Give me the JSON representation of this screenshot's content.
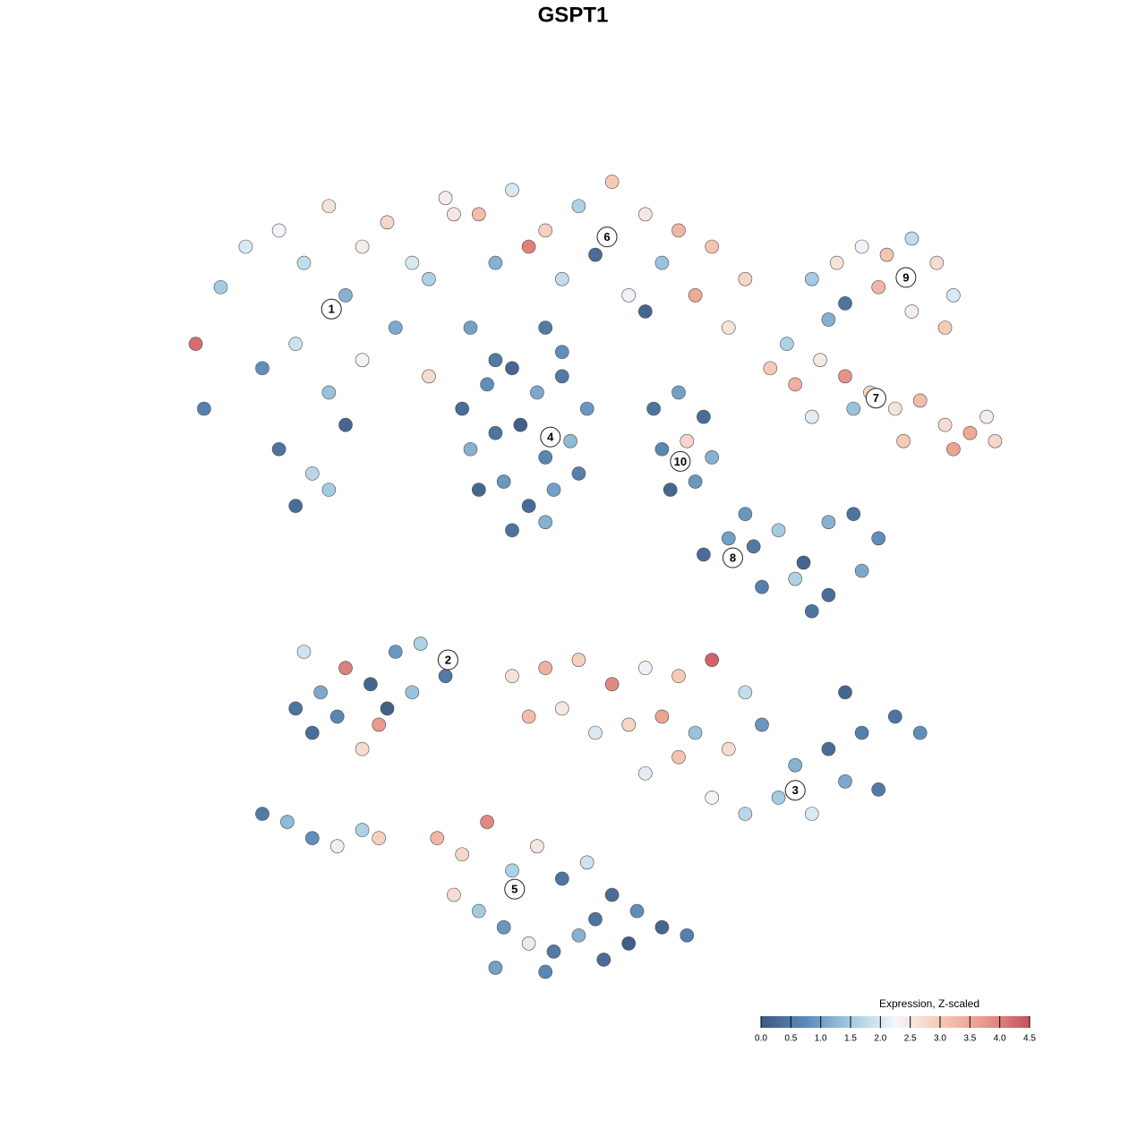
{
  "chart_data": {
    "type": "scatter",
    "title": "GSPT1",
    "xlim": [
      0,
      100
    ],
    "ylim": [
      0,
      100
    ],
    "x": [
      5,
      8,
      12,
      15,
      18,
      20,
      22,
      25,
      28,
      30,
      33,
      35,
      10,
      14,
      18,
      22,
      26,
      30,
      12,
      16,
      20,
      14,
      18,
      2,
      3,
      32,
      36,
      40,
      44,
      48,
      52,
      56,
      60,
      64,
      68,
      38,
      42,
      46,
      50,
      54,
      58,
      62,
      66,
      44,
      56,
      34,
      37,
      40,
      43,
      46,
      49,
      35,
      38,
      41,
      44,
      47,
      36,
      39,
      42,
      45,
      48,
      40,
      44,
      38,
      46,
      57,
      60,
      63,
      58,
      61,
      64,
      59,
      62,
      76,
      79,
      82,
      85,
      88,
      91,
      93,
      80,
      84,
      88,
      92,
      78,
      71,
      74,
      77,
      80,
      83,
      86,
      89,
      92,
      95,
      98,
      76,
      81,
      87,
      93,
      97,
      73,
      63,
      66,
      69,
      72,
      75,
      78,
      81,
      84,
      70,
      74,
      78,
      82,
      68,
      76,
      14,
      17,
      20,
      23,
      26,
      29,
      32,
      16,
      19,
      22,
      25,
      28,
      15,
      24,
      10,
      13,
      16,
      19,
      22,
      24,
      40,
      44,
      48,
      52,
      56,
      60,
      64,
      68,
      42,
      46,
      50,
      54,
      58,
      62,
      66,
      70,
      74,
      78,
      82,
      86,
      89,
      72,
      76,
      80,
      84,
      64,
      68,
      60,
      56,
      80,
      31,
      34,
      37,
      40,
      43,
      46,
      49,
      52,
      55,
      58,
      61,
      33,
      36,
      39,
      42,
      45,
      48,
      51,
      54,
      38,
      44,
      50
    ],
    "y": [
      85,
      90,
      92,
      88,
      95,
      84,
      90,
      93,
      88,
      86,
      94,
      80,
      75,
      78,
      72,
      76,
      80,
      74,
      65,
      62,
      68,
      58,
      60,
      78,
      70,
      96,
      94,
      97,
      92,
      95,
      98,
      94,
      92,
      90,
      86,
      88,
      90,
      86,
      89,
      84,
      88,
      84,
      80,
      80,
      82,
      70,
      73,
      75,
      72,
      74,
      70,
      65,
      67,
      68,
      64,
      66,
      60,
      61,
      58,
      60,
      62,
      55,
      56,
      76,
      77,
      70,
      72,
      69,
      65,
      66,
      64,
      60,
      61,
      86,
      88,
      90,
      89,
      91,
      88,
      84,
      83,
      85,
      82,
      80,
      81,
      75,
      73,
      76,
      74,
      72,
      70,
      71,
      68,
      67,
      66,
      69,
      70,
      66,
      65,
      69,
      78,
      52,
      54,
      53,
      55,
      51,
      56,
      57,
      54,
      48,
      49,
      47,
      50,
      57,
      45,
      33,
      35,
      38,
      36,
      40,
      41,
      37,
      30,
      32,
      28,
      33,
      35,
      40,
      31,
      20,
      19,
      17,
      16,
      18,
      17,
      37,
      38,
      39,
      36,
      38,
      37,
      39,
      35,
      32,
      33,
      30,
      31,
      32,
      30,
      28,
      31,
      26,
      28,
      30,
      32,
      30,
      22,
      20,
      24,
      23,
      22,
      20,
      27,
      25,
      35,
      17,
      15,
      19,
      13,
      16,
      12,
      14,
      10,
      8,
      6,
      5,
      10,
      8,
      6,
      4,
      3,
      5,
      2,
      4,
      1,
      0.5,
      7
    ],
    "values": [
      1.5,
      2.0,
      2.2,
      1.8,
      2.6,
      1.2,
      2.4,
      2.8,
      2.0,
      1.6,
      2.5,
      1.0,
      0.8,
      1.9,
      1.4,
      2.3,
      1.1,
      2.7,
      0.4,
      1.7,
      0.2,
      0.3,
      1.5,
      4.2,
      0.6,
      2.4,
      3.2,
      2.0,
      2.9,
      1.6,
      3.0,
      2.5,
      3.3,
      3.1,
      2.8,
      1.2,
      4.0,
      1.8,
      0.3,
      2.2,
      1.4,
      3.5,
      2.6,
      0.5,
      0.2,
      0.3,
      0.8,
      0.2,
      1.1,
      0.5,
      0.9,
      1.2,
      0.4,
      0.1,
      0.7,
      1.3,
      0.2,
      0.9,
      0.3,
      1.0,
      0.6,
      0.4,
      1.2,
      0.5,
      0.8,
      0.4,
      1.0,
      0.3,
      0.7,
      2.8,
      1.2,
      0.2,
      0.9,
      1.5,
      2.6,
      2.2,
      3.1,
      1.8,
      2.7,
      2.0,
      0.4,
      3.3,
      2.4,
      3.0,
      1.2,
      3.0,
      3.4,
      2.5,
      3.8,
      2.9,
      2.6,
      3.2,
      2.7,
      3.5,
      2.8,
      2.1,
      1.4,
      3.0,
      3.6,
      2.4,
      1.6,
      0.3,
      1.0,
      0.5,
      1.5,
      0.2,
      1.2,
      0.4,
      0.8,
      0.6,
      1.6,
      0.3,
      1.1,
      0.9,
      0.4,
      0.4,
      1.1,
      4.0,
      0.2,
      0.9,
      1.6,
      0.5,
      0.3,
      0.7,
      2.7,
      0.1,
      1.4,
      1.9,
      3.7,
      0.5,
      1.3,
      0.8,
      2.4,
      1.6,
      2.9,
      2.6,
      3.4,
      2.9,
      3.9,
      2.2,
      3.0,
      4.3,
      1.8,
      3.2,
      2.5,
      2.0,
      2.8,
      3.6,
      1.4,
      2.7,
      0.9,
      1.2,
      0.3,
      0.6,
      0.4,
      0.8,
      1.5,
      2.0,
      1.1,
      0.5,
      2.3,
      1.7,
      3.1,
      2.1,
      0.2,
      3.3,
      2.8,
      3.9,
      1.6,
      2.5,
      0.4,
      1.9,
      0.3,
      0.8,
      0.2,
      0.6,
      2.7,
      1.5,
      0.9,
      2.1,
      0.5,
      1.2,
      0.3,
      0.1,
      1.0,
      0.7,
      0.4
    ],
    "annotations": [
      {
        "text": "1",
        "x": 18.3,
        "y": 82.3
      },
      {
        "text": "2",
        "x": 32.3,
        "y": 39.0
      },
      {
        "text": "3",
        "x": 74.0,
        "y": 22.9
      },
      {
        "text": "4",
        "x": 44.6,
        "y": 66.5
      },
      {
        "text": "5",
        "x": 40.3,
        "y": 10.7
      },
      {
        "text": "6",
        "x": 51.4,
        "y": 91.2
      },
      {
        "text": "7",
        "x": 83.7,
        "y": 71.3
      },
      {
        "text": "8",
        "x": 66.5,
        "y": 51.6
      },
      {
        "text": "9",
        "x": 87.3,
        "y": 86.2
      },
      {
        "text": "10",
        "x": 60.2,
        "y": 63.5
      }
    ],
    "colorbar": {
      "title": "Expression, Z-scaled",
      "lim": [
        0,
        4.5
      ],
      "colors": [
        "#3d5a80",
        "#5b8ab8",
        "#a3cbe2",
        "#f4f6f8",
        "#f6cbb6",
        "#e8998b",
        "#c7505e"
      ],
      "ticks": [
        {
          "value": 0,
          "label": "0.0"
        },
        {
          "value": 0.5,
          "label": "0.5"
        },
        {
          "value": 1,
          "label": "1.0"
        },
        {
          "value": 1.5,
          "label": "1.5"
        },
        {
          "value": 2,
          "label": "2.0"
        },
        {
          "value": 2.5,
          "label": "2.5"
        },
        {
          "value": 3,
          "label": "3.0"
        },
        {
          "value": 3.5,
          "label": "3.5"
        },
        {
          "value": 4,
          "label": "4.0"
        },
        {
          "value": 4.5,
          "label": "4.5"
        }
      ]
    }
  }
}
